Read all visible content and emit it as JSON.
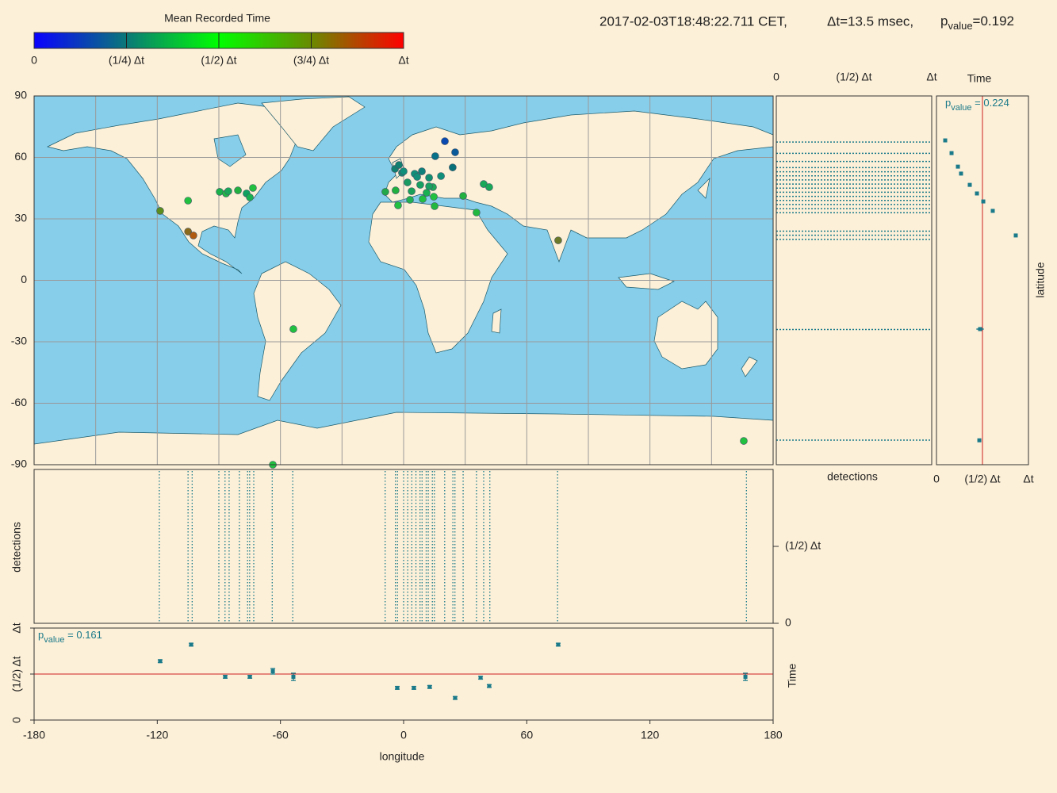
{
  "header": {
    "timestamp": "2017-02-03T18:48:22.711 CET,",
    "delta_t": "Δt=13.5 msec,",
    "p": "p",
    "p_sub": "value",
    "p_text": "=0.192"
  },
  "chart_data": [
    {
      "type": "colorbar",
      "title": "Mean Recorded Time",
      "lim": [
        0,
        1
      ],
      "colors": [
        "#0a00ff",
        "#0a7878",
        "#00ff00",
        "#6a8a00",
        "#ff0000"
      ],
      "ticks": [
        0,
        {
          "value": 0.25,
          "label": "(1/4) Δt"
        },
        {
          "value": 0.5,
          "label": "(1/2) Δt"
        },
        {
          "value": 0.75,
          "label": "(3/4) Δt"
        },
        {
          "value": 1,
          "label": "Δt"
        }
      ]
    },
    {
      "type": "map",
      "xlim": [
        -180,
        180
      ],
      "ylim": [
        -90,
        90
      ],
      "grid": true,
      "xticks": [
        -180,
        -150,
        -120,
        -90,
        -60,
        -30,
        0,
        30,
        60,
        90,
        120,
        150,
        180
      ],
      "yticks": [
        90,
        60,
        30,
        0,
        -30,
        -60,
        -90
      ],
      "x": [
        -118.6,
        -105,
        -105,
        -102.4,
        -89.6,
        -86.5,
        -85.4,
        -80.7,
        -76.5,
        -74.9,
        -73.4,
        -63.7,
        -53.7,
        -8.9,
        -3.9,
        -2.7,
        -4.2,
        -2.3,
        -0.8,
        1.9,
        3.1,
        3.9,
        5.4,
        6.6,
        8.1,
        9.3,
        11.2,
        12.4,
        14.7,
        14.3,
        15.1,
        15.4,
        20.1,
        25.1,
        23.9,
        18.2,
        12.4,
        29,
        35.5,
        39,
        41.7,
        75.3,
        165.7,
        0,
        8.9
      ],
      "y": [
        33.9,
        38.9,
        23.8,
        21.9,
        43.2,
        42.4,
        43.5,
        43.9,
        42.4,
        40.5,
        45.1,
        -90,
        -23.8,
        43.2,
        43.9,
        36.6,
        54.4,
        56.3,
        52.5,
        47.8,
        39.3,
        43.5,
        52,
        50.5,
        46.6,
        39.7,
        42.7,
        50.1,
        40.8,
        45.5,
        36.2,
        60.6,
        67.9,
        62.5,
        55.1,
        50.9,
        45.9,
        41.2,
        33.1,
        47,
        45.5,
        19.5,
        -78.4,
        53.2,
        53.2
      ],
      "colors": [
        "#5a8c1e",
        "#22c040",
        "#8a6a1a",
        "#b05a10",
        "#1ab04a",
        "#22b848",
        "#1aa858",
        "#22b040",
        "#10a060",
        "#18b050",
        "#22c040",
        "#22c040",
        "#22c040",
        "#22a848",
        "#22b040",
        "#22c040",
        "#108070",
        "#108070",
        "#188878",
        "#1a9a60",
        "#22b050",
        "#1aa058",
        "#10907a",
        "#14907a",
        "#18a060",
        "#22c040",
        "#18b050",
        "#109070",
        "#22c040",
        "#20a858",
        "#22b840",
        "#087088",
        "#0a4ab0",
        "#0a5a9a",
        "#087078",
        "#10907a",
        "#1aa060",
        "#22b040",
        "#22b840",
        "#18a858",
        "#18a858",
        "#6a7a2a",
        "#22c040",
        "#10907a",
        "#10807a"
      ]
    },
    {
      "type": "raster",
      "orientation": "horizontal",
      "xlabel": "detections",
      "color": "#1a7a8a",
      "xlim": [
        0,
        1
      ],
      "xticks": [
        0,
        {
          "value": 0.5,
          "label": "(1/2) Δt"
        },
        {
          "value": 1,
          "label": "Δt"
        }
      ],
      "ylim": [
        -90,
        90
      ],
      "y": [
        67.5,
        62,
        58,
        55,
        53,
        51,
        49,
        47,
        45,
        43,
        41,
        39,
        37,
        35,
        33,
        24,
        22,
        20,
        -24,
        -78
      ]
    },
    {
      "type": "errorbar",
      "orientation": "horizontal",
      "title": "Time",
      "ylabel": "latitude",
      "color": "#1a7a8a",
      "refline": 0.5,
      "p": "p",
      "p_sub": "value",
      "p_text": " = 0.224",
      "xlim": [
        0,
        1
      ],
      "xticks": [
        0,
        {
          "value": 0.5,
          "label": "(1/2) Δt"
        },
        {
          "value": 1,
          "label": "Δt"
        }
      ],
      "ylim": [
        -90,
        90
      ],
      "x": [
        0.095,
        0.164,
        0.233,
        0.267,
        0.362,
        0.44,
        0.509,
        0.612,
        0.862,
        0.474,
        0.466
      ],
      "errors": [
        0.015,
        0.015,
        0.015,
        0.015,
        0.015,
        0.015,
        0.015,
        0.015,
        0.015,
        0.04,
        0.02
      ],
      "y": [
        68.3,
        62.1,
        55.5,
        52.1,
        46.6,
        42.4,
        38.5,
        33.9,
        21.9,
        -23.8,
        -78.1
      ]
    },
    {
      "type": "raster",
      "orientation": "vertical",
      "ylabel": "detections",
      "color": "#1a7a8a",
      "xlim": [
        -180,
        180
      ],
      "ylim": [
        0,
        1
      ],
      "yticks": [
        {
          "value": 0.5,
          "label": "(1/2) Δt"
        },
        0
      ],
      "x": [
        -119,
        -105,
        -103,
        -90,
        -87,
        -85,
        -80,
        -76,
        -75,
        -73,
        -64,
        -54,
        -9,
        -4,
        -3,
        0,
        2,
        4,
        6,
        8,
        9,
        11,
        12,
        14,
        15,
        20,
        24,
        25,
        29,
        35.5,
        39,
        42,
        75,
        167
      ]
    },
    {
      "type": "errorbar",
      "orientation": "vertical",
      "xlabel": "longitude",
      "ylabel": "Time",
      "color": "#1a7a8a",
      "refline": 0.5,
      "p": "p",
      "p_sub": "value",
      "p_text": " = 0.161",
      "xlim": [
        -180,
        180
      ],
      "xticks": [
        -180,
        -120,
        -60,
        0,
        60,
        120,
        180
      ],
      "ylim": [
        0,
        1
      ],
      "yticks": [
        0,
        {
          "value": 0.5,
          "label": "(1/2) Δt"
        },
        {
          "value": 1,
          "label": "Δt"
        }
      ],
      "x": [
        -118.6,
        -103.5,
        -86.9,
        -74.9,
        -63.7,
        -53.7,
        -3.1,
        5,
        12.7,
        25.1,
        37.5,
        41.7,
        75.3,
        166.5
      ],
      "y": [
        0.64,
        0.82,
        0.47,
        0.47,
        0.53,
        0.47,
        0.35,
        0.35,
        0.36,
        0.24,
        0.46,
        0.37,
        0.82,
        0.47
      ],
      "errors": [
        0.015,
        0.015,
        0.015,
        0.015,
        0.03,
        0.04,
        0.015,
        0.015,
        0.015,
        0.015,
        0.015,
        0.015,
        0.015,
        0.04
      ]
    }
  ]
}
